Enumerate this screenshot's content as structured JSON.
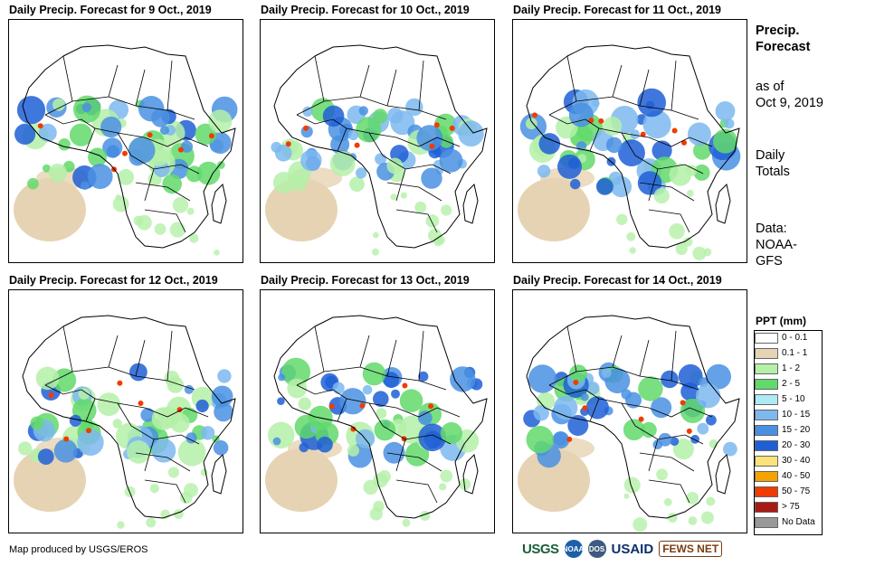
{
  "panels": [
    {
      "title": "Daily Precip. Forecast for 9 Oct., 2019"
    },
    {
      "title": "Daily Precip. Forecast for 10 Oct., 2019"
    },
    {
      "title": "Daily Precip. Forecast for 11 Oct., 2019"
    },
    {
      "title": "Daily Precip. Forecast for 12 Oct., 2019"
    },
    {
      "title": "Daily Precip. Forecast for 13 Oct., 2019"
    },
    {
      "title": "Daily Precip. Forecast for 14 Oct., 2019"
    }
  ],
  "side": {
    "title_line1": "Precip.",
    "title_line2": "Forecast",
    "asof_line1": "as of",
    "asof_line2": "Oct 9, 2019",
    "totals_line1": "Daily",
    "totals_line2": "Totals",
    "data_line1": "Data:",
    "data_line2": "NOAA-",
    "data_line3": "GFS"
  },
  "legend": {
    "title": "PPT (mm)",
    "items": [
      {
        "label": "0 - 0.1",
        "color": "#ffffff"
      },
      {
        "label": "0.1 - 1",
        "color": "#e6d3b3"
      },
      {
        "label": "1 - 2",
        "color": "#b4f0a8"
      },
      {
        "label": "2 - 5",
        "color": "#62d96b"
      },
      {
        "label": "5 - 10",
        "color": "#aeeaf5"
      },
      {
        "label": "10 - 15",
        "color": "#7db8ee"
      },
      {
        "label": "15 - 20",
        "color": "#4a90e2"
      },
      {
        "label": "20 - 30",
        "color": "#1f5fd6"
      },
      {
        "label": "30 - 40",
        "color": "#fbe37a"
      },
      {
        "label": "40 - 50",
        "color": "#f5a300"
      },
      {
        "label": "50 - 75",
        "color": "#f03c00"
      },
      {
        "label": "> 75",
        "color": "#a81a14"
      },
      {
        "label": "No Data",
        "color": "#999999"
      }
    ]
  },
  "credit": "Map produced by USGS/EROS",
  "logos": {
    "usgs": "USGS",
    "noaa": "NOAA",
    "dos": "DOS",
    "usaid": "USAID",
    "fews": "FEWS NET"
  }
}
